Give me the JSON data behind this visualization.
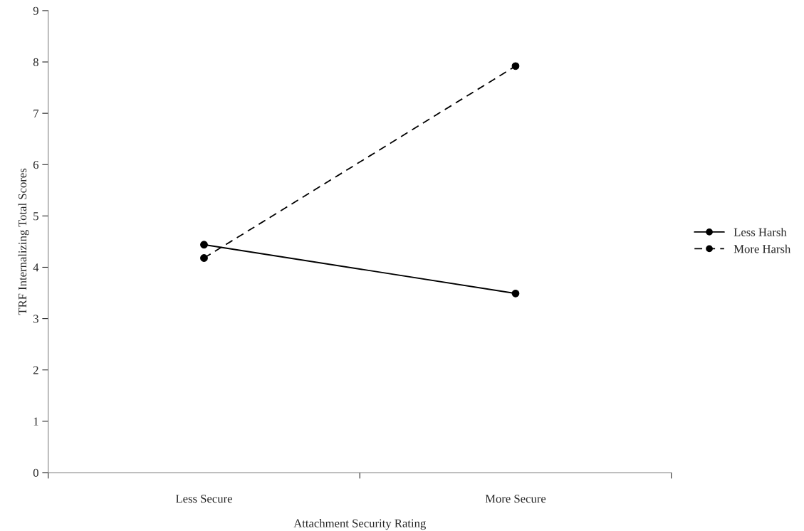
{
  "chart_data": {
    "type": "line",
    "xlabel": "Attachment Security Rating",
    "ylabel": "TRF Internalizing Total Scores",
    "categories": [
      "Less Secure",
      "More Secure"
    ],
    "series": [
      {
        "name": "Less Harsh",
        "color": "#000000",
        "values": [
          4.44,
          3.49
        ],
        "line_style": "solid"
      },
      {
        "name": "More Harsh",
        "color": "#000000",
        "values": [
          4.18,
          7.92
        ],
        "line_style": "dashed"
      }
    ],
    "ylim": [
      0,
      9
    ],
    "yticks": [
      0,
      1,
      2,
      3,
      4,
      5,
      6,
      7,
      8,
      9
    ],
    "grid": false,
    "legend": "right",
    "marker": "circle"
  }
}
